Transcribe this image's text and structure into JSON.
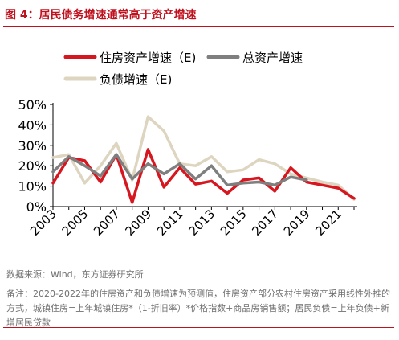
{
  "figure": {
    "title": "图 4：居民债务增速通常高于资产增速",
    "source": "数据来源：Wind，东方证券研究所",
    "note": "备注：2020-2022年的住房资产和负债增速为预测值，住房资产部分农村住房资产采用线性外推的方式，城镇住房=上年城镇住房*（1-折旧率）*价格指数+商品房销售额；居民负债=上年负债+新增居民贷款"
  },
  "chart_data": {
    "type": "line",
    "x": [
      2003,
      2004,
      2005,
      2006,
      2007,
      2008,
      2009,
      2010,
      2011,
      2012,
      2013,
      2014,
      2015,
      2016,
      2017,
      2018,
      2019,
      2020,
      2021,
      2022
    ],
    "xticks": [
      "2003",
      "2005",
      "2007",
      "2009",
      "2011",
      "2013",
      "2015",
      "2017",
      "2019",
      "2021"
    ],
    "ylim": [
      0,
      50
    ],
    "yticks": [
      "0%",
      "10%",
      "20%",
      "30%",
      "40%",
      "50%"
    ],
    "grid": false,
    "legend": "top",
    "series": [
      {
        "name": "住房资产增速（E)",
        "color": "#d7171f",
        "values": [
          11.5,
          24,
          22.5,
          12,
          25.5,
          2,
          28,
          9.5,
          19,
          11,
          12.5,
          6.5,
          13,
          14,
          7.5,
          19,
          12,
          10.5,
          9,
          4
        ]
      },
      {
        "name": "总资产增速",
        "color": "#7f7f7f",
        "values": [
          17,
          24.5,
          20,
          15,
          25.5,
          13.5,
          21,
          16,
          21,
          13.5,
          20,
          10.5,
          11.5,
          12,
          10.5,
          14.5,
          13,
          null,
          null,
          null
        ]
      },
      {
        "name": "负债增速（E)",
        "color": "#ddd5c0",
        "values": [
          24,
          25.5,
          11.5,
          20,
          31,
          13,
          44,
          37,
          21,
          20,
          24.5,
          17,
          18,
          23,
          21,
          16,
          14,
          12,
          10.5,
          3.5
        ]
      }
    ]
  }
}
